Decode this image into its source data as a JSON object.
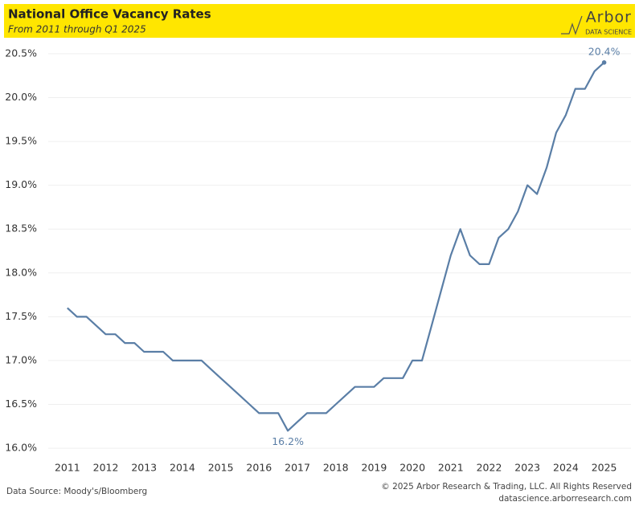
{
  "chart_data": {
    "type": "line",
    "title": "National Office Vacancy Rates",
    "subtitle": "From 2011 through Q1 2025",
    "logo": "Arbor",
    "logo_subtitle": "DATA SCIENCE",
    "source": "Data Source: Moody's/Bloomberg",
    "copyright": "© 2025 Arbor Research & Trading, LLC. All Rights Reserved",
    "website": "datascience.arborresearch.com",
    "color": "#5a7ea6",
    "grid": true,
    "x": [
      2011,
      2011.25,
      2011.5,
      2011.75,
      2012,
      2012.25,
      2012.5,
      2012.75,
      2013,
      2013.25,
      2013.5,
      2013.75,
      2014,
      2014.25,
      2014.5,
      2014.75,
      2015,
      2015.25,
      2015.5,
      2015.75,
      2016,
      2016.25,
      2016.5,
      2016.75,
      2017,
      2017.25,
      2017.5,
      2017.75,
      2018,
      2018.25,
      2018.5,
      2018.75,
      2019,
      2019.25,
      2019.5,
      2019.75,
      2020,
      2020.25,
      2020.5,
      2020.75,
      2021,
      2021.25,
      2021.5,
      2021.75,
      2022,
      2022.25,
      2022.5,
      2022.75,
      2023,
      2023.25,
      2023.5,
      2023.75,
      2024,
      2024.25,
      2024.5,
      2024.75,
      2025
    ],
    "values": [
      17.6,
      17.5,
      17.5,
      17.4,
      17.3,
      17.3,
      17.2,
      17.2,
      17.1,
      17.1,
      17.1,
      17.0,
      17.0,
      17.0,
      17.0,
      16.9,
      16.8,
      16.7,
      16.6,
      16.5,
      16.4,
      16.4,
      16.4,
      16.2,
      16.3,
      16.4,
      16.4,
      16.4,
      16.5,
      16.6,
      16.7,
      16.7,
      16.7,
      16.8,
      16.8,
      16.8,
      17.0,
      17.0,
      17.4,
      17.8,
      18.2,
      18.5,
      18.2,
      18.1,
      18.1,
      18.4,
      18.5,
      18.7,
      19.0,
      18.9,
      19.2,
      19.6,
      19.8,
      20.1,
      20.1,
      20.3,
      20.4
    ],
    "annotations": [
      {
        "x": 2016.75,
        "y": 16.2,
        "label": "16.2%",
        "position": "below"
      },
      {
        "x": 2025,
        "y": 20.4,
        "label": "20.4%",
        "position": "above"
      }
    ],
    "xlim": [
      2010.5,
      2025.7
    ],
    "xticks": [
      2011,
      2012,
      2013,
      2014,
      2015,
      2016,
      2017,
      2018,
      2019,
      2020,
      2021,
      2022,
      2023,
      2024,
      2025
    ],
    "ylim": [
      15.9,
      20.6
    ],
    "yticks": [
      {
        "value": 16.0,
        "label": "16.0%"
      },
      {
        "value": 16.5,
        "label": "16.5%"
      },
      {
        "value": 17.0,
        "label": "17.0%"
      },
      {
        "value": 17.5,
        "label": "17.5%"
      },
      {
        "value": 18.0,
        "label": "18.0%"
      },
      {
        "value": 18.5,
        "label": "18.5%"
      },
      {
        "value": 19.0,
        "label": "19.0%"
      },
      {
        "value": 19.5,
        "label": "19.5%"
      },
      {
        "value": 20.0,
        "label": "20.0%"
      },
      {
        "value": 20.5,
        "label": "20.5%"
      }
    ]
  }
}
